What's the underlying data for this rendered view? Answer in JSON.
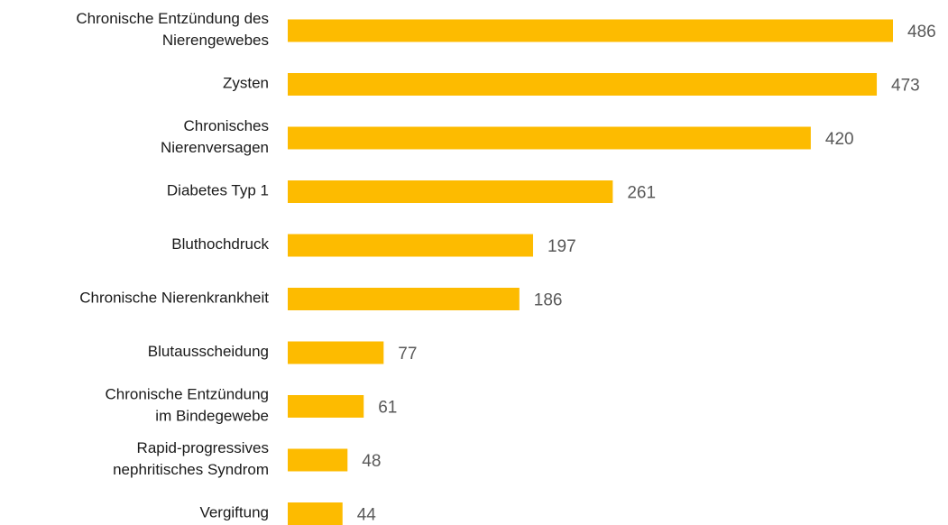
{
  "chart_data": {
    "type": "hbar",
    "color": "#fdbb00",
    "categories": [
      "Chronische Entzündung des\nNierengewebes",
      "Zysten",
      "Chronisches\nNierenversagen",
      "Diabetes Typ 1",
      "Bluthochdruck",
      "Chronische Nierenkrankheit",
      "Blutausscheidung",
      "Chronische Entzündung\nim Bindegewebe",
      "Rapid-progressives\nnephritisches Syndrom",
      "Vergiftung"
    ],
    "values": [
      486,
      473,
      420,
      261,
      197,
      186,
      77,
      61,
      48,
      44
    ]
  }
}
